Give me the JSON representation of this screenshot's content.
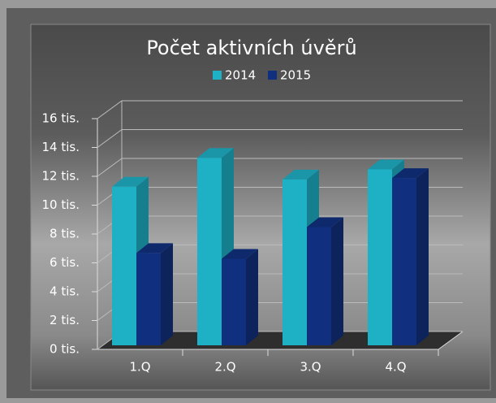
{
  "chart_data": {
    "type": "bar3d",
    "title": "Počet aktivních úvěrů",
    "categories": [
      "1.Q",
      "2.Q",
      "3.Q",
      "4.Q"
    ],
    "series": [
      {
        "name": "2014",
        "color": "#1eb1c6",
        "values": [
          11000,
          13000,
          11500,
          12200
        ]
      },
      {
        "name": "2015",
        "color": "#10307f",
        "values": [
          6400,
          6000,
          8200,
          11600
        ]
      }
    ],
    "ylim": [
      0,
      16000
    ],
    "yticks": [
      {
        "value": 0,
        "label": "0 tis."
      },
      {
        "value": 2000,
        "label": "2 tis."
      },
      {
        "value": 4000,
        "label": "4 tis."
      },
      {
        "value": 6000,
        "label": "6 tis."
      },
      {
        "value": 8000,
        "label": "8 tis."
      },
      {
        "value": 10000,
        "label": "10 tis."
      },
      {
        "value": 12000,
        "label": "12 tis."
      },
      {
        "value": 14000,
        "label": "14 tis."
      },
      {
        "value": 16000,
        "label": "16 tis."
      }
    ],
    "grid": true,
    "legend": "top"
  }
}
